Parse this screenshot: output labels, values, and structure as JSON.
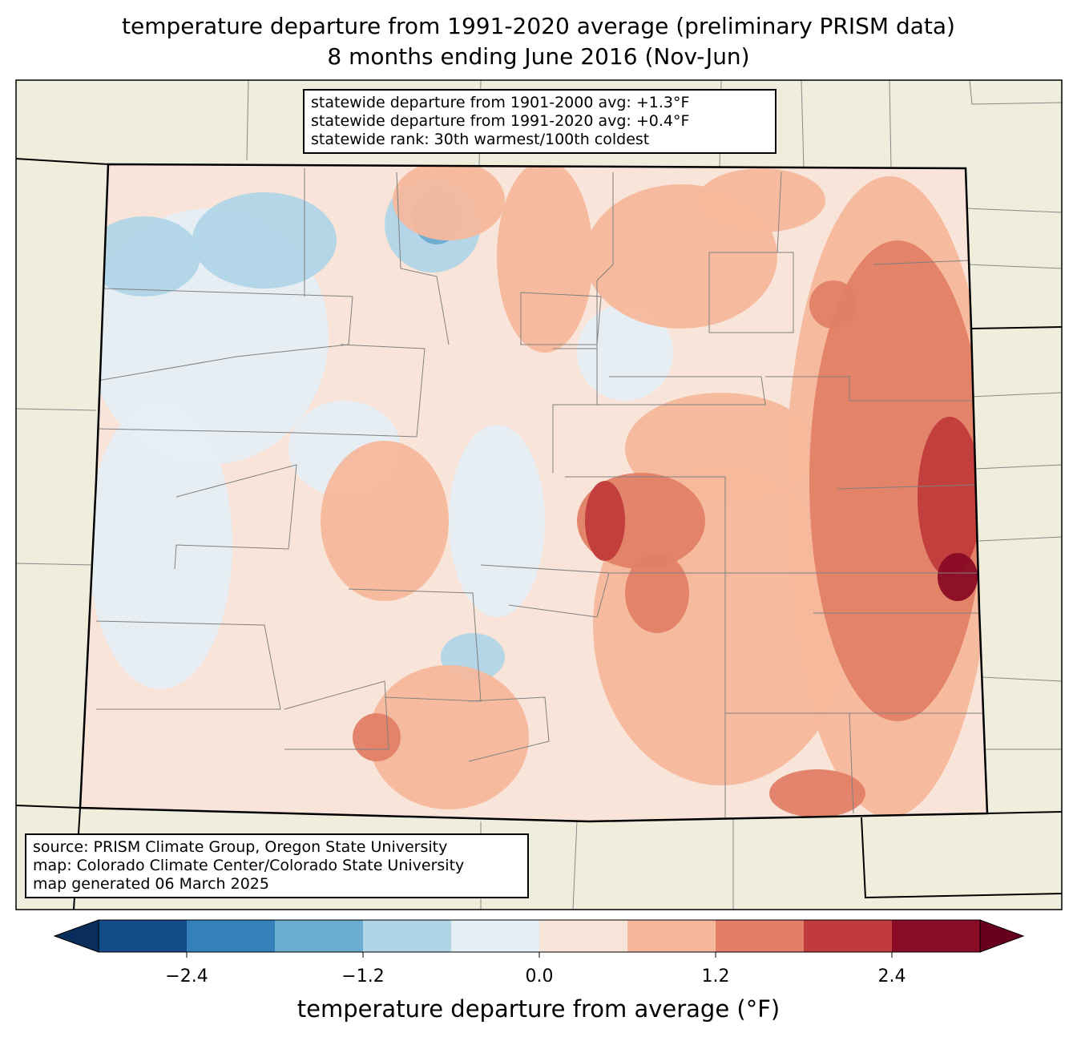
{
  "title": {
    "line1": "temperature departure from 1991-2020 average (preliminary PRISM data)",
    "line2": "8 months ending June 2016 (Nov-Jun)"
  },
  "info_box": {
    "line1": "statewide departure from 1901-2000 avg: +1.3°F",
    "line2": "statewide departure from 1991-2020 avg: +0.4°F",
    "line3": "statewide rank: 30th warmest/100th coldest"
  },
  "source_box": {
    "line1": "source: PRISM Climate Group, Oregon State University",
    "line2": "map: Colorado Climate Center/Colorado State University",
    "line3": "map generated 06 March 2025"
  },
  "colorbar": {
    "label": "temperature departure from average (°F)",
    "levels": [
      -3.0,
      -2.4,
      -1.8,
      -1.2,
      -0.6,
      0.0,
      0.6,
      1.2,
      1.8,
      2.4,
      3.0
    ],
    "colors": [
      "#134b87",
      "#3480b9",
      "#6bacd1",
      "#b0d5e7",
      "#e5eef4",
      "#f9e4d9",
      "#f6b89c",
      "#e27f66",
      "#c13b3c",
      "#8a0b25"
    ],
    "extend_low_color": "#0a2e5c",
    "extend_high_color": "#67001f",
    "ticks": [
      "−2.4",
      "−1.2",
      "0.0",
      "1.2",
      "2.4"
    ],
    "tick_values": [
      -2.4,
      -1.2,
      0.0,
      1.2,
      2.4
    ]
  },
  "colors": {
    "land": "#efeedc",
    "county_lines": "#808080"
  }
}
